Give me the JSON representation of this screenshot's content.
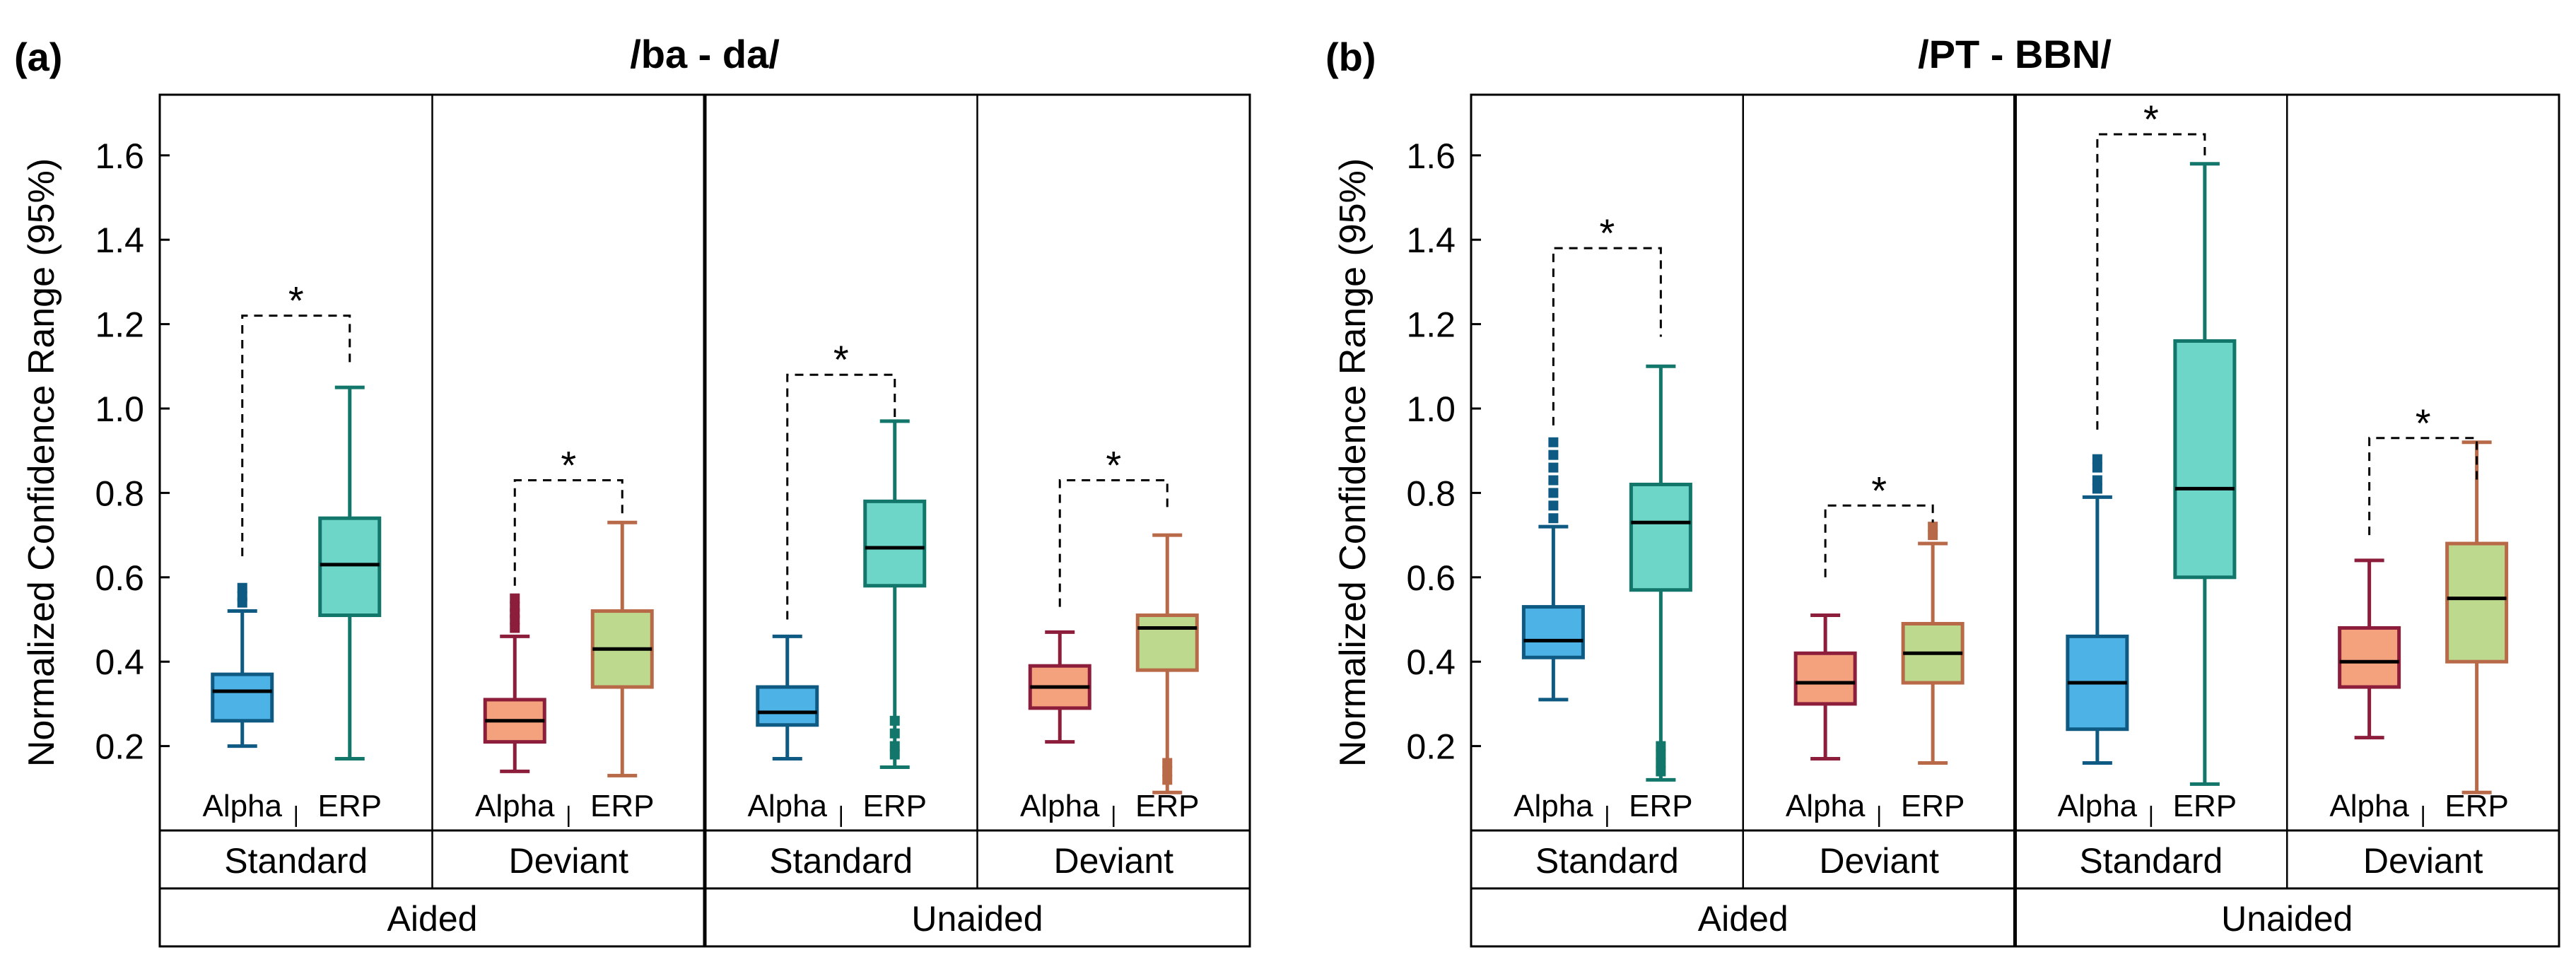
{
  "colors": {
    "alpha_standard": {
      "fill": "#4db3e6",
      "stroke": "#0e5a82"
    },
    "erp_standard": {
      "fill": "#6ed6c8",
      "stroke": "#12766a"
    },
    "alpha_deviant": {
      "fill": "#f4a27e",
      "stroke": "#8c1e3c"
    },
    "erp_deviant": {
      "fill": "#bcd98e",
      "stroke": "#b86a48"
    }
  },
  "chart_data": [
    {
      "type": "box",
      "panel_label": "(a)",
      "title": "/ba - da/",
      "ylabel": "Normalized Confidence Range (95%)",
      "ylim": [
        0,
        1.7
      ],
      "yticks": [
        "0.2",
        "0.4",
        "0.6",
        "0.8",
        "1.0",
        "1.2",
        "1.4",
        "1.6"
      ],
      "group_labels": [
        "Aided",
        "Unaided"
      ],
      "condition_labels": [
        "Standard",
        "Deviant",
        "Standard",
        "Deviant"
      ],
      "box_labels": {
        "alpha": "Alpha",
        "erp": "ERP"
      },
      "significance_marker": "*",
      "conditions": [
        {
          "boxes": [
            {
              "series": "alpha_standard",
              "whisker_low": 0.2,
              "q1": 0.26,
              "median": 0.33,
              "q3": 0.37,
              "whisker_high": 0.52,
              "outliers": [
                0.54,
                0.555,
                0.575
              ]
            },
            {
              "series": "erp_standard",
              "whisker_low": 0.17,
              "q1": 0.51,
              "median": 0.63,
              "q3": 0.74,
              "whisker_high": 1.05,
              "outliers": []
            }
          ],
          "sig_y": [
            0.65,
            1.22,
            1.1
          ]
        },
        {
          "boxes": [
            {
              "series": "alpha_deviant",
              "whisker_low": 0.14,
              "q1": 0.21,
              "median": 0.26,
              "q3": 0.31,
              "whisker_high": 0.46,
              "outliers": [
                0.48,
                0.5,
                0.515,
                0.53,
                0.55
              ]
            },
            {
              "series": "erp_deviant",
              "whisker_low": 0.13,
              "q1": 0.34,
              "median": 0.43,
              "q3": 0.52,
              "whisker_high": 0.73,
              "outliers": []
            }
          ],
          "sig_y": [
            0.58,
            0.83,
            0.75
          ]
        },
        {
          "boxes": [
            {
              "series": "alpha_standard",
              "whisker_low": 0.17,
              "q1": 0.25,
              "median": 0.28,
              "q3": 0.34,
              "whisker_high": 0.46,
              "outliers": []
            },
            {
              "series": "erp_standard",
              "whisker_low": 0.15,
              "q1": 0.58,
              "median": 0.67,
              "q3": 0.78,
              "whisker_high": 0.97,
              "outliers": [
                0.18,
                0.2,
                0.23,
                0.26
              ]
            }
          ],
          "sig_y": [
            0.5,
            1.08,
            0.98
          ]
        },
        {
          "boxes": [
            {
              "series": "alpha_deviant",
              "whisker_low": 0.21,
              "q1": 0.29,
              "median": 0.34,
              "q3": 0.39,
              "whisker_high": 0.47,
              "outliers": []
            },
            {
              "series": "erp_deviant",
              "whisker_low": 0.09,
              "q1": 0.38,
              "median": 0.48,
              "q3": 0.51,
              "whisker_high": 0.7,
              "outliers": [
                0.12,
                0.14,
                0.16
              ]
            }
          ],
          "sig_y": [
            0.53,
            0.83,
            0.76
          ]
        }
      ]
    },
    {
      "type": "box",
      "panel_label": "(b)",
      "title": "/PT - BBN/",
      "ylabel": "Normalized Confidence Range (95%)",
      "ylim": [
        0,
        1.7
      ],
      "yticks": [
        "0.2",
        "0.4",
        "0.6",
        "0.8",
        "1.0",
        "1.2",
        "1.4",
        "1.6"
      ],
      "group_labels": [
        "Aided",
        "Unaided"
      ],
      "condition_labels": [
        "Standard",
        "Deviant",
        "Standard",
        "Deviant"
      ],
      "box_labels": {
        "alpha": "Alpha",
        "erp": "ERP"
      },
      "significance_marker": "*",
      "conditions": [
        {
          "boxes": [
            {
              "series": "alpha_standard",
              "whisker_low": 0.31,
              "q1": 0.41,
              "median": 0.45,
              "q3": 0.53,
              "whisker_high": 0.72,
              "outliers": [
                0.74,
                0.77,
                0.8,
                0.83,
                0.86,
                0.89,
                0.92
              ]
            },
            {
              "series": "erp_standard",
              "whisker_low": 0.12,
              "q1": 0.57,
              "median": 0.73,
              "q3": 0.82,
              "whisker_high": 1.1,
              "outliers": [
                0.14,
                0.16,
                0.18,
                0.2
              ]
            }
          ],
          "sig_y": [
            0.96,
            1.38,
            1.17
          ]
        },
        {
          "boxes": [
            {
              "series": "alpha_deviant",
              "whisker_low": 0.17,
              "q1": 0.3,
              "median": 0.35,
              "q3": 0.42,
              "whisker_high": 0.51,
              "outliers": []
            },
            {
              "series": "erp_deviant",
              "whisker_low": 0.16,
              "q1": 0.35,
              "median": 0.42,
              "q3": 0.49,
              "whisker_high": 0.68,
              "outliers": [
                0.7,
                0.72
              ]
            }
          ],
          "sig_y": [
            0.6,
            0.77,
            0.73
          ]
        },
        {
          "boxes": [
            {
              "series": "alpha_standard",
              "whisker_low": 0.16,
              "q1": 0.24,
              "median": 0.35,
              "q3": 0.46,
              "whisker_high": 0.79,
              "outliers": [
                0.81,
                0.83,
                0.86,
                0.88
              ]
            },
            {
              "series": "erp_standard",
              "whisker_low": 0.11,
              "q1": 0.6,
              "median": 0.81,
              "q3": 1.16,
              "whisker_high": 1.58,
              "outliers": []
            }
          ],
          "sig_y": [
            0.95,
            1.65,
            1.6
          ]
        },
        {
          "boxes": [
            {
              "series": "alpha_deviant",
              "whisker_low": 0.22,
              "q1": 0.34,
              "median": 0.4,
              "q3": 0.48,
              "whisker_high": 0.64,
              "outliers": []
            },
            {
              "series": "erp_deviant",
              "whisker_low": 0.09,
              "q1": 0.4,
              "median": 0.55,
              "q3": 0.68,
              "whisker_high": 0.92,
              "outliers": []
            }
          ],
          "sig_y": [
            0.7,
            0.93,
            0.83
          ]
        }
      ]
    }
  ]
}
